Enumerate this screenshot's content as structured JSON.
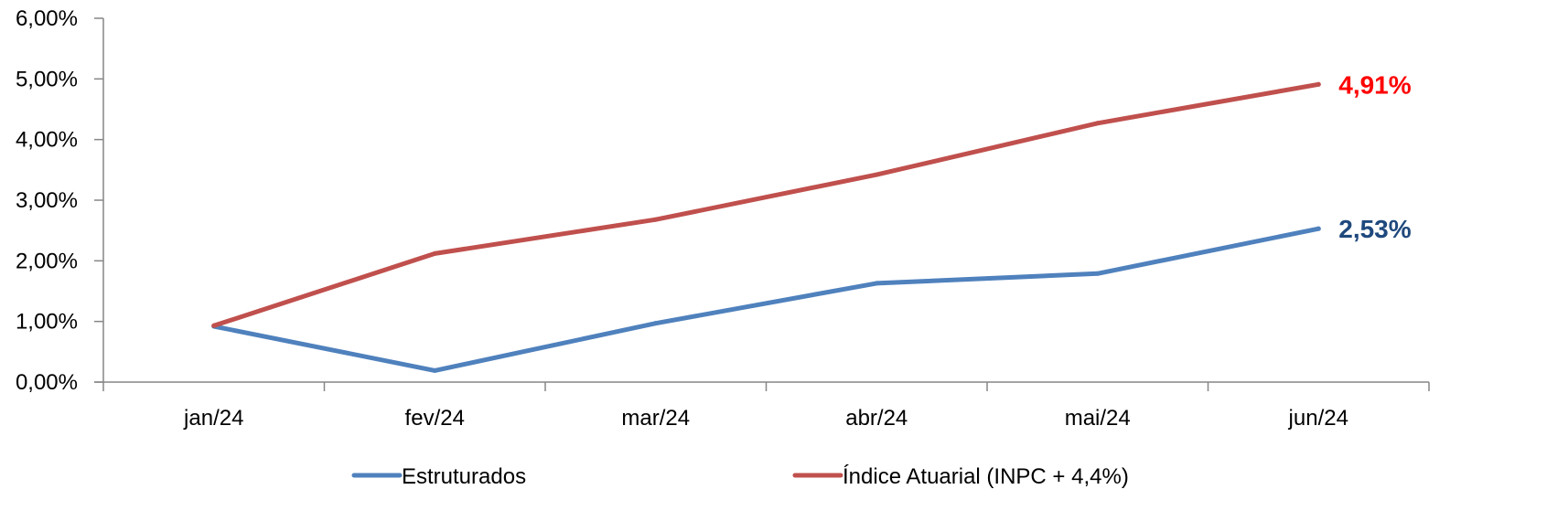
{
  "chart_data": {
    "type": "line",
    "categories": [
      "jan/24",
      "fev/24",
      "mar/24",
      "abr/24",
      "mai/24",
      "jun/24"
    ],
    "series": [
      {
        "name": "Estruturados",
        "values": [
          0.92,
          0.19,
          0.97,
          1.63,
          1.79,
          2.53
        ],
        "color": "#4F81BD",
        "end_label": "2,53%",
        "end_label_color": "#1F497D"
      },
      {
        "name": "Índice Atuarial (INPC + 4,4%)",
        "values": [
          0.93,
          2.12,
          2.68,
          3.42,
          4.27,
          4.91
        ],
        "color": "#C0504D",
        "end_label": "4,91%",
        "end_label_color": "#FF0000"
      }
    ],
    "y_ticks": [
      {
        "value": 0,
        "label": "0,00%"
      },
      {
        "value": 1,
        "label": "1,00%"
      },
      {
        "value": 2,
        "label": "2,00%"
      },
      {
        "value": 3,
        "label": "3,00%"
      },
      {
        "value": 4,
        "label": "4,00%"
      },
      {
        "value": 5,
        "label": "5,00%"
      },
      {
        "value": 6,
        "label": "6,00%"
      }
    ],
    "ylim": [
      0,
      6
    ],
    "title": "",
    "xlabel": "",
    "ylabel": "",
    "grid": false,
    "legend_position": "bottom",
    "axis_color": "#868686"
  }
}
